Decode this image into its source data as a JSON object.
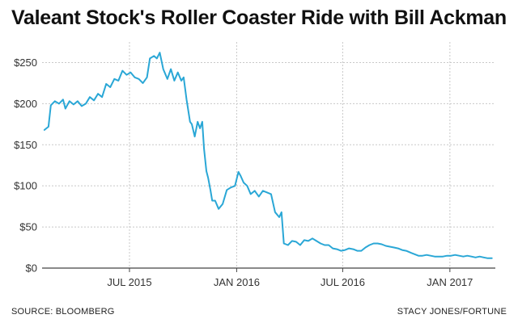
{
  "title": "Valeant Stock's Roller Coaster Ride with Bill Ackman",
  "footer": {
    "source": "SOURCE: BLOOMBERG",
    "credit": "STACY JONES/FORTUNE"
  },
  "colors": {
    "line": "#2aa7d6",
    "grid": "#c8c8c8",
    "axis": "#444444"
  },
  "chart_data": {
    "type": "line",
    "title": "Valeant Stock's Roller Coaster Ride with Bill Ackman",
    "xlabel": "",
    "ylabel": "",
    "ylim": [
      0,
      275
    ],
    "xlim": [
      "2015-02-01",
      "2017-03-20"
    ],
    "yticks": [
      0,
      50,
      100,
      150,
      200,
      250
    ],
    "ytick_labels": [
      "$0",
      "$50",
      "$100",
      "$150",
      "$200",
      "$250"
    ],
    "xticks": [
      "2015-07-01",
      "2016-01-01",
      "2016-07-01",
      "2017-01-01"
    ],
    "xtick_labels": [
      "JUL 2015",
      "JAN 2016",
      "JUL 2016",
      "JAN 2017"
    ],
    "grid": true,
    "legend": "none",
    "series": [
      {
        "points": [
          [
            "2015-02-05",
            168
          ],
          [
            "2015-02-12",
            172
          ],
          [
            "2015-02-16",
            198
          ],
          [
            "2015-02-23",
            203
          ],
          [
            "2015-03-02",
            200
          ],
          [
            "2015-03-09",
            205
          ],
          [
            "2015-03-13",
            194
          ],
          [
            "2015-03-20",
            203
          ],
          [
            "2015-03-27",
            199
          ],
          [
            "2015-04-03",
            203
          ],
          [
            "2015-04-10",
            197
          ],
          [
            "2015-04-17",
            200
          ],
          [
            "2015-04-24",
            208
          ],
          [
            "2015-05-01",
            204
          ],
          [
            "2015-05-08",
            212
          ],
          [
            "2015-05-15",
            208
          ],
          [
            "2015-05-22",
            224
          ],
          [
            "2015-05-29",
            220
          ],
          [
            "2015-06-05",
            230
          ],
          [
            "2015-06-12",
            228
          ],
          [
            "2015-06-19",
            240
          ],
          [
            "2015-06-26",
            235
          ],
          [
            "2015-07-03",
            238
          ],
          [
            "2015-07-10",
            232
          ],
          [
            "2015-07-17",
            230
          ],
          [
            "2015-07-24",
            225
          ],
          [
            "2015-07-31",
            232
          ],
          [
            "2015-08-05",
            255
          ],
          [
            "2015-08-12",
            258
          ],
          [
            "2015-08-17",
            255
          ],
          [
            "2015-08-22",
            262
          ],
          [
            "2015-08-28",
            242
          ],
          [
            "2015-09-04",
            230
          ],
          [
            "2015-09-10",
            242
          ],
          [
            "2015-09-16",
            228
          ],
          [
            "2015-09-22",
            238
          ],
          [
            "2015-09-28",
            228
          ],
          [
            "2015-10-02",
            232
          ],
          [
            "2015-10-07",
            205
          ],
          [
            "2015-10-13",
            178
          ],
          [
            "2015-10-16",
            175
          ],
          [
            "2015-10-21",
            160
          ],
          [
            "2015-10-26",
            178
          ],
          [
            "2015-10-30",
            170
          ],
          [
            "2015-11-03",
            178
          ],
          [
            "2015-11-06",
            145
          ],
          [
            "2015-11-10",
            118
          ],
          [
            "2015-11-13",
            110
          ],
          [
            "2015-11-17",
            95
          ],
          [
            "2015-11-20",
            82
          ],
          [
            "2015-11-25",
            82
          ],
          [
            "2015-12-01",
            72
          ],
          [
            "2015-12-08",
            78
          ],
          [
            "2015-12-15",
            95
          ],
          [
            "2015-12-22",
            98
          ],
          [
            "2015-12-29",
            100
          ],
          [
            "2016-01-04",
            117
          ],
          [
            "2016-01-08",
            112
          ],
          [
            "2016-01-13",
            104
          ],
          [
            "2016-01-19",
            100
          ],
          [
            "2016-01-25",
            90
          ],
          [
            "2016-02-01",
            94
          ],
          [
            "2016-02-08",
            87
          ],
          [
            "2016-02-15",
            94
          ],
          [
            "2016-02-22",
            92
          ],
          [
            "2016-02-29",
            90
          ],
          [
            "2016-03-07",
            68
          ],
          [
            "2016-03-14",
            62
          ],
          [
            "2016-03-18",
            68
          ],
          [
            "2016-03-22",
            30
          ],
          [
            "2016-03-29",
            28
          ],
          [
            "2016-04-05",
            33
          ],
          [
            "2016-04-12",
            32
          ],
          [
            "2016-04-19",
            28
          ],
          [
            "2016-04-26",
            34
          ],
          [
            "2016-05-03",
            33
          ],
          [
            "2016-05-10",
            36
          ],
          [
            "2016-05-17",
            33
          ],
          [
            "2016-05-24",
            30
          ],
          [
            "2016-05-31",
            28
          ],
          [
            "2016-06-07",
            28
          ],
          [
            "2016-06-14",
            24
          ],
          [
            "2016-06-21",
            23
          ],
          [
            "2016-06-28",
            21
          ],
          [
            "2016-07-05",
            22
          ],
          [
            "2016-07-12",
            24
          ],
          [
            "2016-07-19",
            23
          ],
          [
            "2016-07-26",
            21
          ],
          [
            "2016-08-02",
            21
          ],
          [
            "2016-08-09",
            25
          ],
          [
            "2016-08-16",
            28
          ],
          [
            "2016-08-23",
            30
          ],
          [
            "2016-08-30",
            30
          ],
          [
            "2016-09-06",
            29
          ],
          [
            "2016-09-13",
            27
          ],
          [
            "2016-09-20",
            26
          ],
          [
            "2016-09-27",
            25
          ],
          [
            "2016-10-04",
            24
          ],
          [
            "2016-10-11",
            22
          ],
          [
            "2016-10-18",
            21
          ],
          [
            "2016-10-25",
            19
          ],
          [
            "2016-11-01",
            17
          ],
          [
            "2016-11-08",
            15
          ],
          [
            "2016-11-15",
            15
          ],
          [
            "2016-11-22",
            16
          ],
          [
            "2016-11-29",
            15
          ],
          [
            "2016-12-06",
            14
          ],
          [
            "2016-12-13",
            14
          ],
          [
            "2016-12-20",
            14
          ],
          [
            "2016-12-27",
            15
          ],
          [
            "2017-01-03",
            15
          ],
          [
            "2017-01-10",
            16
          ],
          [
            "2017-01-17",
            15
          ],
          [
            "2017-01-24",
            14
          ],
          [
            "2017-01-31",
            15
          ],
          [
            "2017-02-07",
            14
          ],
          [
            "2017-02-14",
            13
          ],
          [
            "2017-02-21",
            14
          ],
          [
            "2017-02-28",
            13
          ],
          [
            "2017-03-07",
            12
          ],
          [
            "2017-03-14",
            12
          ]
        ]
      }
    ]
  }
}
